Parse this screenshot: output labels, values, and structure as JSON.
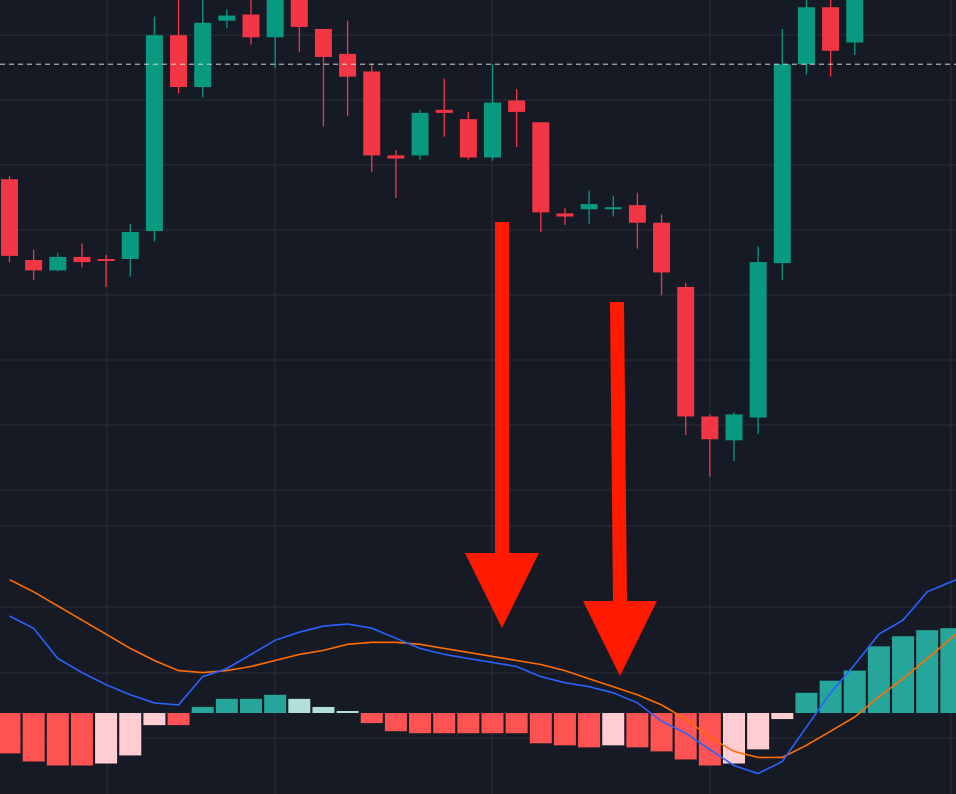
{
  "colors": {
    "background": "#161a25",
    "grid": "#2a2e39",
    "bull": "#089981",
    "bear": "#f23645",
    "last_price_line": "#d1d4dc",
    "macd_line": "#2962ff",
    "signal_line": "#ff6d00",
    "hist_pos_strong": "#26a69a",
    "hist_pos_weak": "#b2dfdb",
    "hist_neg_strong": "#ff5252",
    "hist_neg_weak": "#ffcdd2",
    "arrow": "#ff1a00"
  },
  "chart_data": [
    {
      "type": "candlestick",
      "title": "",
      "xlabel": "",
      "ylabel": "",
      "grid": true,
      "ylim": [
        67,
        117
      ],
      "last_price": 110.8,
      "candles": [
        {
          "o": 99.7,
          "h": 100.0,
          "l": 91.7,
          "c": 92.3
        },
        {
          "o": 91.9,
          "h": 92.9,
          "l": 90.0,
          "c": 90.9
        },
        {
          "o": 90.9,
          "h": 92.6,
          "l": 90.8,
          "c": 92.2
        },
        {
          "o": 92.2,
          "h": 93.5,
          "l": 91.2,
          "c": 91.7
        },
        {
          "o": 92.0,
          "h": 92.4,
          "l": 89.3,
          "c": 91.9
        },
        {
          "o": 92.0,
          "h": 95.4,
          "l": 90.3,
          "c": 94.6
        },
        {
          "o": 94.7,
          "h": 115.4,
          "l": 93.7,
          "c": 113.6
        },
        {
          "o": 113.6,
          "h": 120.0,
          "l": 108.0,
          "c": 108.6
        },
        {
          "o": 108.6,
          "h": 118.4,
          "l": 107.6,
          "c": 114.8
        },
        {
          "o": 115.0,
          "h": 116.1,
          "l": 114.3,
          "c": 115.5
        },
        {
          "o": 115.6,
          "h": 119.0,
          "l": 112.7,
          "c": 113.4
        },
        {
          "o": 113.4,
          "h": 120.5,
          "l": 110.4,
          "c": 117.1
        },
        {
          "o": 117.1,
          "h": 120.5,
          "l": 112.0,
          "c": 114.4
        },
        {
          "o": 114.2,
          "h": 114.2,
          "l": 104.8,
          "c": 111.5
        },
        {
          "o": 111.8,
          "h": 115.0,
          "l": 105.8,
          "c": 109.6
        },
        {
          "o": 110.1,
          "h": 110.8,
          "l": 100.4,
          "c": 102.0
        },
        {
          "o": 102.0,
          "h": 102.5,
          "l": 97.9,
          "c": 101.7
        },
        {
          "o": 102.0,
          "h": 106.4,
          "l": 101.6,
          "c": 106.1
        },
        {
          "o": 106.4,
          "h": 109.4,
          "l": 103.8,
          "c": 106.1
        },
        {
          "o": 105.5,
          "h": 106.2,
          "l": 101.6,
          "c": 101.8
        },
        {
          "o": 101.8,
          "h": 110.8,
          "l": 101.5,
          "c": 107.1
        },
        {
          "o": 107.3,
          "h": 108.4,
          "l": 102.8,
          "c": 106.2
        },
        {
          "o": 105.2,
          "h": 105.2,
          "l": 94.6,
          "c": 96.5
        },
        {
          "o": 96.4,
          "h": 96.9,
          "l": 95.3,
          "c": 96.1
        },
        {
          "o": 96.8,
          "h": 98.6,
          "l": 95.4,
          "c": 97.3
        },
        {
          "o": 97.0,
          "h": 98.1,
          "l": 96.1,
          "c": 97.0
        },
        {
          "o": 97.2,
          "h": 98.4,
          "l": 93.0,
          "c": 95.5
        },
        {
          "o": 95.5,
          "h": 96.3,
          "l": 88.5,
          "c": 90.7
        },
        {
          "o": 89.3,
          "h": 89.7,
          "l": 75.0,
          "c": 76.8
        },
        {
          "o": 76.8,
          "h": 77.0,
          "l": 71.0,
          "c": 74.6
        },
        {
          "o": 74.5,
          "h": 77.2,
          "l": 72.5,
          "c": 77.0
        },
        {
          "o": 76.7,
          "h": 93.2,
          "l": 75.1,
          "c": 91.7
        },
        {
          "o": 91.6,
          "h": 114.2,
          "l": 90.0,
          "c": 110.8
        },
        {
          "o": 110.8,
          "h": 133.0,
          "l": 109.8,
          "c": 116.3
        },
        {
          "o": 116.3,
          "h": 121.0,
          "l": 109.6,
          "c": 112.1
        },
        {
          "o": 112.9,
          "h": 122.3,
          "l": 111.7,
          "c": 119.8
        },
        {
          "o": 120.5,
          "h": 129.6,
          "l": 119.5,
          "c": 124.9
        }
      ]
    },
    {
      "type": "macd",
      "title": "",
      "grid": true,
      "ylim": [
        -4,
        6
      ],
      "histogram": [
        -2.0,
        -2.4,
        -2.6,
        -2.6,
        -2.5,
        -2.1,
        -0.6,
        -0.6,
        0.3,
        0.7,
        0.7,
        0.9,
        0.7,
        0.3,
        0.1,
        -0.5,
        -0.9,
        -1.0,
        -1.0,
        -1.0,
        -1.0,
        -1.0,
        -1.5,
        -1.6,
        -1.7,
        -1.6,
        -1.7,
        -1.9,
        -2.3,
        -2.6,
        -2.5,
        -1.8,
        -0.3,
        1.0,
        1.6,
        2.1,
        3.3,
        3.8,
        4.1,
        4.2,
        4.2
      ],
      "macd": [
        4.8,
        4.2,
        2.7,
        2.0,
        1.4,
        0.9,
        0.5,
        0.4,
        1.8,
        2.2,
        2.9,
        3.6,
        4.0,
        4.3,
        4.4,
        4.2,
        3.7,
        3.2,
        2.9,
        2.7,
        2.5,
        2.3,
        1.8,
        1.5,
        1.3,
        1.0,
        0.5,
        -0.4,
        -1.0,
        -1.8,
        -2.6,
        -3.0,
        -2.4,
        -0.7,
        1.0,
        2.4,
        3.9,
        4.6,
        6.0,
        6.5,
        7.0
      ],
      "signal": [
        6.6,
        6.0,
        5.3,
        4.6,
        3.9,
        3.2,
        2.6,
        2.1,
        2.0,
        2.1,
        2.3,
        2.6,
        2.9,
        3.1,
        3.4,
        3.5,
        3.5,
        3.4,
        3.2,
        3.0,
        2.8,
        2.6,
        2.4,
        2.1,
        1.7,
        1.3,
        0.9,
        0.4,
        -0.3,
        -1.2,
        -1.9,
        -2.2,
        -2.2,
        -1.6,
        -0.9,
        -0.2,
        0.8,
        1.7,
        2.7,
        3.7,
        4.8
      ]
    }
  ],
  "annotations": {
    "arrows": [
      {
        "name": "first-down-arrow"
      },
      {
        "name": "second-down-arrow"
      }
    ]
  }
}
